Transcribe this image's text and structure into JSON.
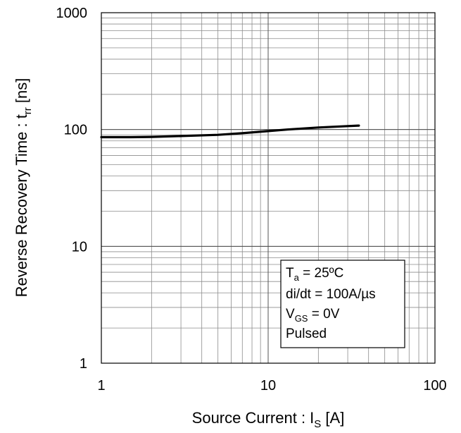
{
  "chart_data": {
    "type": "line",
    "title": "",
    "xscale": "log",
    "yscale": "log",
    "xlim": [
      1,
      100
    ],
    "ylim": [
      1,
      1000
    ],
    "grid": true,
    "x_ticks": [
      "1",
      "10",
      "100"
    ],
    "y_ticks": [
      "1",
      "10",
      "100",
      "1000"
    ],
    "xlabel": {
      "main": "Source Current : I",
      "sub": "S",
      "unit": " [A]"
    },
    "ylabel": {
      "main": "Reverse Recovery Time : t",
      "sub": "rr",
      "unit": " [ns]"
    },
    "series": [
      {
        "x": [
          1,
          1.5,
          2,
          3,
          5,
          7,
          10,
          13,
          20,
          30,
          35
        ],
        "y": [
          86,
          86,
          86.5,
          88,
          90,
          93,
          97,
          100,
          104,
          107,
          108
        ]
      }
    ],
    "annotation": {
      "lines": [
        {
          "main": "T",
          "sub": "a",
          "rest": " = 25ºC"
        },
        {
          "main": "di/dt = 100A/µs",
          "sub": "",
          "rest": ""
        },
        {
          "main": "V",
          "sub": "GS",
          "rest": " = 0V"
        },
        {
          "main": "Pulsed",
          "sub": "",
          "rest": ""
        }
      ]
    }
  }
}
